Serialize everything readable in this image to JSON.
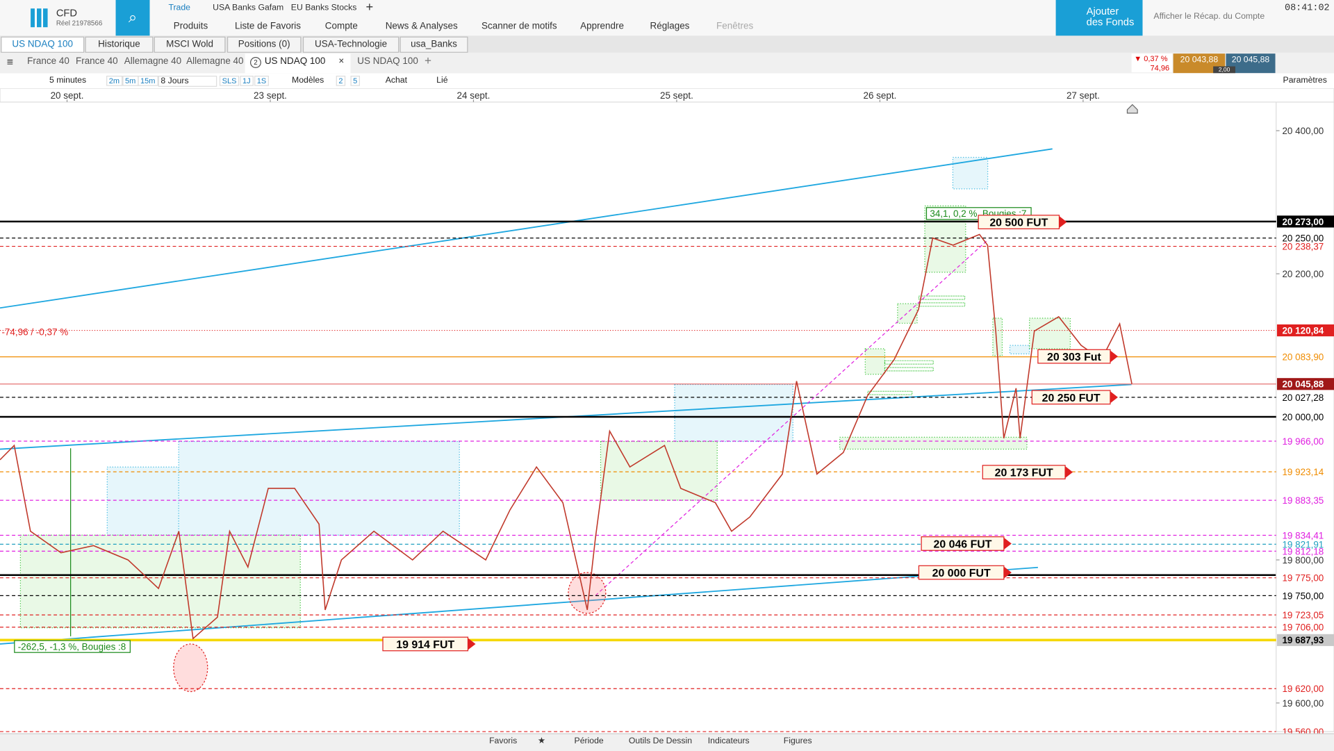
{
  "ui": {
    "brand": "CFD",
    "account": "Réel 21978566",
    "top_links": [
      "Trade",
      "USA Banks Gafam",
      "EU Banks Stocks"
    ],
    "menu": [
      "Produits",
      "Liste de Favoris",
      "Compte",
      "News & Analyses",
      "Scanner de motifs",
      "Apprendre",
      "Réglages",
      "Fenêtres"
    ],
    "add_funds": "Ajouter des Fonds",
    "account_summary": "Afficher le Récap. du Compte",
    "clock": "08:41:02",
    "tabs": [
      "US NDAQ 100",
      "Historique",
      "MSCI Wold",
      "Positions (0)",
      "USA-Technologie",
      "usa_Banks"
    ],
    "chart_tabs": [
      "France 40",
      "France 40",
      "Allemagne 40",
      "Allemagne 40",
      "US NDAQ 100",
      "US NDAQ 100"
    ],
    "active_tab_badge": "2",
    "quote": {
      "change_pct": "0,37 %",
      "change": "74,96",
      "sell": "20 043,88",
      "buy": "20 045,88",
      "spread": "2,00"
    },
    "toolbar": [
      "5 minutes",
      "2m",
      "5m",
      "15m",
      "8 Jours",
      "SLS",
      "1J",
      "1S",
      "Modèles",
      "2",
      "5",
      "Achat",
      "Lié",
      "Paramètres"
    ],
    "bottom": [
      "Favoris",
      "Période",
      "Outils De Dessin",
      "Indicateurs",
      "Figures"
    ]
  },
  "chart_data": {
    "type": "line",
    "color": "#c0392b",
    "xlim": [
      -0.33,
      5.95
    ],
    "xticks": [
      {
        "value": 0,
        "label": "20 sept."
      },
      {
        "value": 1,
        "label": "23 sept."
      },
      {
        "value": 2,
        "label": "24 sept."
      },
      {
        "value": 3,
        "label": "25 sept."
      },
      {
        "value": 4,
        "label": "26 sept."
      },
      {
        "value": 5,
        "label": "27 sept."
      }
    ],
    "ylim": [
      19560,
      20440
    ],
    "yticks": [
      {
        "value": 20400,
        "label": "20 400,00"
      },
      {
        "value": 20200,
        "label": "20 200,00"
      },
      {
        "value": 19800,
        "label": "19 800,00"
      },
      {
        "value": 19600,
        "label": "19 600,00"
      }
    ],
    "x": [
      -0.33,
      -0.26,
      -0.18,
      -0.03,
      0.13,
      0.3,
      0.45,
      0.55,
      0.62,
      0.74,
      0.8,
      0.89,
      0.99,
      1.12,
      1.24,
      1.27,
      1.35,
      1.51,
      1.7,
      1.85,
      2.06,
      2.18,
      2.31,
      2.44,
      2.56,
      2.6,
      2.67,
      2.77,
      2.94,
      3.02,
      3.19,
      3.27,
      3.36,
      3.52,
      3.59,
      3.69,
      3.82,
      3.94,
      4.07,
      4.19,
      4.26,
      4.36,
      4.49,
      4.53,
      4.57,
      4.61,
      4.67,
      4.69,
      4.76,
      4.88,
      4.99,
      5.09,
      5.18,
      5.24
    ],
    "values": [
      19940,
      19960,
      19840,
      19810,
      19820,
      19800,
      19760,
      19840,
      19690,
      19720,
      19840,
      19790,
      19900,
      19900,
      19850,
      19730,
      19800,
      19840,
      19800,
      19840,
      19800,
      19870,
      19930,
      19880,
      19730,
      19830,
      19980,
      19930,
      19960,
      19900,
      19880,
      19840,
      19860,
      19920,
      20050,
      19920,
      19950,
      20030,
      20080,
      20150,
      20250,
      20240,
      20255,
      20240,
      20120,
      19970,
      20040,
      19970,
      20120,
      20140,
      20100,
      20080,
      20130,
      20046
    ],
    "levels": [
      {
        "value": 20273,
        "label": "20 273,00",
        "color": "#000000",
        "style": "solid",
        "bg": "#000000"
      },
      {
        "value": 20250,
        "label": "20 250,00",
        "color": "#000000",
        "style": "dashed"
      },
      {
        "value": 20238.37,
        "label": "20 238,37",
        "color": "#e02020",
        "style": "dashed"
      },
      {
        "value": 20120.84,
        "label": "20 120,84",
        "color": "#e02020",
        "style": "dotted",
        "bg": "#e02020"
      },
      {
        "value": 20083.9,
        "label": "20 083,90",
        "color": "#f08c00",
        "style": "solid"
      },
      {
        "value": 20045.88,
        "label": "20 045,88",
        "color": "#e57373",
        "style": "solid",
        "bg": "#a01818"
      },
      {
        "value": 20027.28,
        "label": "20 027,28",
        "color": "#000000",
        "style": "dashed"
      },
      {
        "value": 20000,
        "label": "20 000,00",
        "color": "#000000",
        "style": "solid"
      },
      {
        "value": 19966,
        "label": "19 966,00",
        "color": "#e020e0",
        "style": "dashed"
      },
      {
        "value": 19923.14,
        "label": "19 923,14",
        "color": "#f08c00",
        "style": "dashed"
      },
      {
        "value": 19883.35,
        "label": "19 883,35",
        "color": "#e020e0",
        "style": "dashed"
      },
      {
        "value": 19834.41,
        "label": "19 834,41",
        "color": "#e020e0",
        "style": "dashed"
      },
      {
        "value": 19821.91,
        "label": "19 821,91",
        "color": "#20a0c0",
        "style": "dashed"
      },
      {
        "value": 19812.18,
        "label": "19 812,18",
        "color": "#e020e0",
        "style": "dashed"
      },
      {
        "value": 19775,
        "label": "19 775,00",
        "color": "#e02020",
        "style": "dashed"
      },
      {
        "value": 19750,
        "label": "19 750,00",
        "color": "#000000",
        "style": "dashed"
      },
      {
        "value": 19723.05,
        "label": "19 723,05",
        "color": "#e02020",
        "style": "dashed"
      },
      {
        "value": 19706,
        "label": "19 706,00",
        "color": "#e02020",
        "style": "dashed"
      },
      {
        "value": 19687.93,
        "label": "19 687,93",
        "color": "#f5d800",
        "style": "solid",
        "bg": "#c8c8c8"
      },
      {
        "value": 19620,
        "label": "19 620,00",
        "color": "#e02020",
        "style": "dashed"
      },
      {
        "value": 19560,
        "label": "19 560,00",
        "color": "#e02020",
        "style": "dashed"
      }
    ],
    "annotations": [
      "34,1, 0,2 %, Bougies :7",
      "20 500 FUT",
      "20 303 Fut",
      "20 250 FUT",
      "20 173 FUT",
      "20 046 FUT",
      "20 000 FUT",
      "19 914  FUT",
      "-262,5, -1,3 %, Bougies :8",
      "-74,96 / -0,37 %"
    ]
  }
}
